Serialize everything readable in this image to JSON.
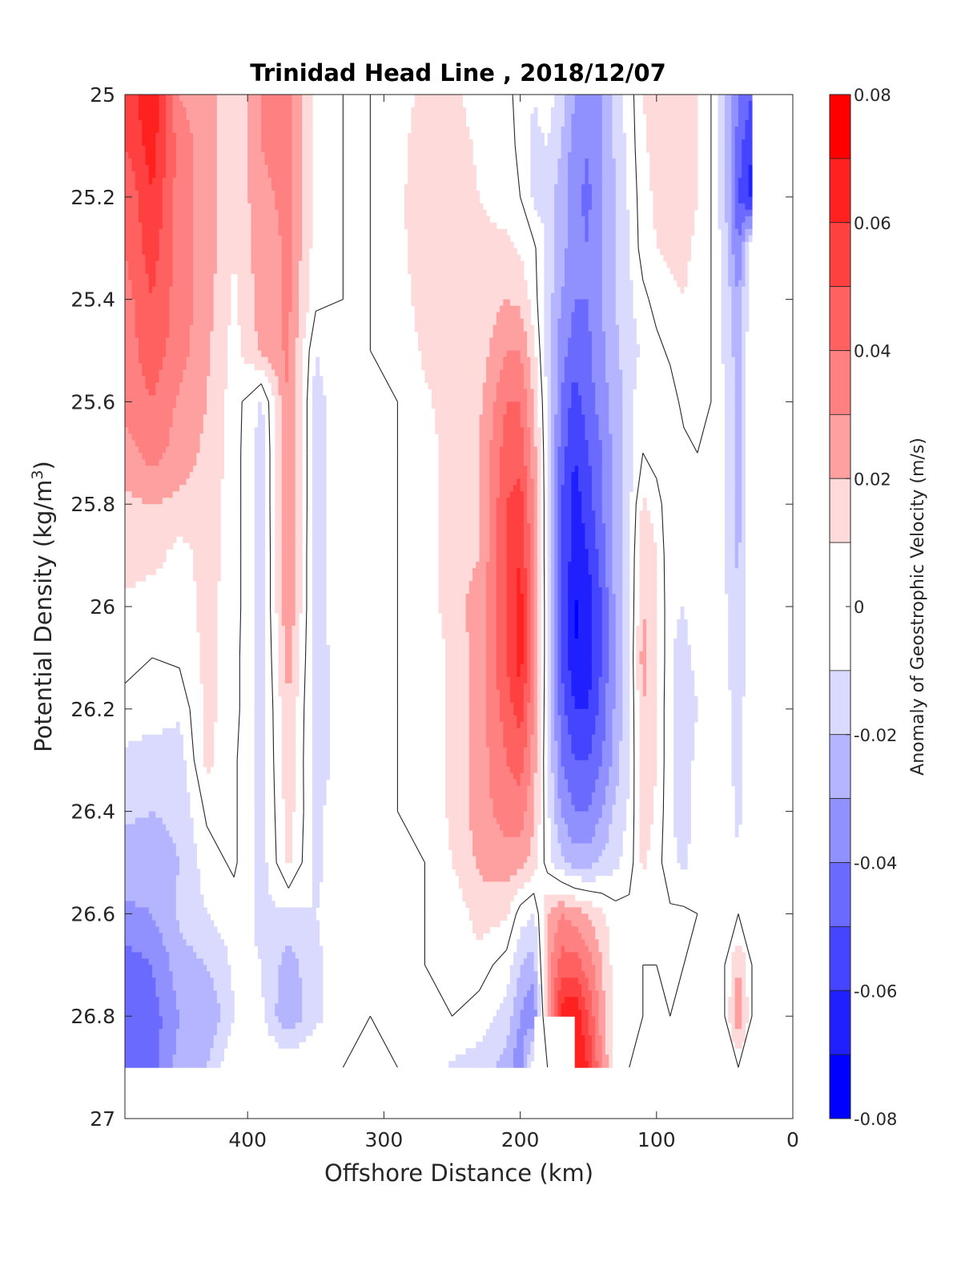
{
  "chart_data": {
    "type": "heatmap",
    "subtype": "filled-contour section",
    "title": "Trinidad Head Line , 2018/12/07",
    "xlabel": "Offshore Distance (km)",
    "ylabel": "Potential Density (kg/m",
    "ylabel_superscript": "3",
    "ylabel_close": ")",
    "xlim": [
      490,
      0
    ],
    "x_reversed": true,
    "ylim": [
      25,
      27
    ],
    "y_reversed": true,
    "x_ticks": [
      400,
      300,
      200,
      100,
      0
    ],
    "y_ticks": [
      25,
      25.2,
      25.4,
      25.6,
      25.8,
      26,
      26.2,
      26.4,
      26.6,
      26.8,
      27
    ],
    "colorbar": {
      "label": "Anomaly of Geostrophic Velocity (m/s)",
      "range": [
        -0.08,
        0.08
      ],
      "ticks": [
        0.08,
        0.06,
        0.04,
        0.02,
        0,
        -0.02,
        -0.04,
        -0.06,
        -0.08
      ],
      "tick_labels": [
        "0.08",
        "0.06",
        "0.04",
        "0.02",
        "0",
        "-0.02",
        "-0.04",
        "-0.06",
        "-0.08"
      ],
      "levels": [
        {
          "range": [
            0.07,
            0.08
          ],
          "color": "#ff0000"
        },
        {
          "range": [
            0.06,
            0.07
          ],
          "color": "#ff2020"
        },
        {
          "range": [
            0.05,
            0.06
          ],
          "color": "#ff4040"
        },
        {
          "range": [
            0.04,
            0.05
          ],
          "color": "#ff6060"
        },
        {
          "range": [
            0.03,
            0.04
          ],
          "color": "#ff8080"
        },
        {
          "range": [
            0.02,
            0.03
          ],
          "color": "#ffa0a0"
        },
        {
          "range": [
            0.01,
            0.02
          ],
          "color": "#ffdada"
        },
        {
          "range": [
            -0.01,
            0.01
          ],
          "color": "#ffffff"
        },
        {
          "range": [
            -0.02,
            -0.01
          ],
          "color": "#dadaff"
        },
        {
          "range": [
            -0.03,
            -0.02
          ],
          "color": "#b5b5ff"
        },
        {
          "range": [
            -0.04,
            -0.03
          ],
          "color": "#9090ff"
        },
        {
          "range": [
            -0.05,
            -0.04
          ],
          "color": "#6a6aff"
        },
        {
          "range": [
            -0.06,
            -0.05
          ],
          "color": "#4545ff"
        },
        {
          "range": [
            -0.07,
            -0.06
          ],
          "color": "#2020ff"
        },
        {
          "range": [
            -0.08,
            -0.07
          ],
          "color": "#0000ff"
        }
      ]
    },
    "field": {
      "x": [
        490,
        470,
        450,
        430,
        410,
        390,
        370,
        350,
        330,
        310,
        290,
        270,
        250,
        230,
        210,
        200,
        190,
        180,
        170,
        160,
        150,
        140,
        130,
        120,
        110,
        100,
        90,
        80,
        70,
        60,
        50,
        40,
        30
      ],
      "y": [
        25,
        25.1,
        25.2,
        25.3,
        25.4,
        25.5,
        25.6,
        25.7,
        25.8,
        25.9,
        26,
        26.1,
        26.2,
        26.3,
        26.4,
        26.5,
        26.6,
        26.7,
        26.8,
        26.9
      ],
      "values": [
        [
          0.05,
          0.07,
          0.03,
          0.025,
          0.01,
          0.03,
          0.035,
          0.005,
          0,
          0,
          0.002,
          0.015,
          0.013,
          0.005,
          0.004,
          -0.005,
          -0.01,
          -0.005,
          -0.015,
          -0.03,
          -0.04,
          -0.03,
          -0.015,
          -0.005,
          0.01,
          0.015,
          0.02,
          0.015,
          0.01,
          0,
          -0.02,
          -0.04,
          -0.05
        ],
        [
          0.05,
          0.065,
          0.035,
          0.025,
          0.01,
          0.03,
          0.035,
          0.005,
          0,
          0,
          0.005,
          0.018,
          0.015,
          0.008,
          0.005,
          -0.003,
          -0.012,
          -0.01,
          -0.02,
          -0.035,
          -0.04,
          -0.03,
          -0.018,
          -0.006,
          0.008,
          0.014,
          0.018,
          0.016,
          0.01,
          0,
          -0.02,
          -0.045,
          -0.06
        ],
        [
          0.04,
          0.06,
          0.035,
          0.025,
          0.01,
          0.028,
          0.032,
          0.006,
          0,
          0,
          0.006,
          0.02,
          0.015,
          0.01,
          0.006,
          0,
          -0.012,
          -0.015,
          -0.025,
          -0.038,
          -0.042,
          -0.03,
          -0.02,
          -0.008,
          0.006,
          0.012,
          0.016,
          0.015,
          0.01,
          0,
          -0.018,
          -0.05,
          -0.065
        ],
        [
          0.04,
          0.055,
          0.035,
          0.025,
          0.01,
          0.025,
          0.032,
          0.005,
          0,
          0,
          0.006,
          0.018,
          0.018,
          0.012,
          0.012,
          0.008,
          0.002,
          -0.012,
          -0.025,
          -0.038,
          -0.04,
          -0.03,
          -0.02,
          -0.01,
          0.005,
          0.01,
          0.012,
          0.012,
          0.008,
          0,
          -0.015,
          -0.04,
          0
        ],
        [
          0.035,
          0.05,
          0.035,
          0.025,
          0.008,
          0.025,
          0.032,
          0.003,
          0,
          0,
          0.004,
          0.015,
          0.015,
          0.014,
          0.02,
          0.018,
          0.005,
          -0.015,
          -0.03,
          -0.04,
          -0.04,
          -0.03,
          -0.02,
          -0.012,
          -0.003,
          0.004,
          0.008,
          0.01,
          0.006,
          0,
          -0.012,
          -0.03,
          0
        ],
        [
          0.035,
          0.045,
          0.035,
          0.022,
          0.006,
          0.022,
          0.032,
          -0.01,
          0,
          0,
          0.002,
          0.012,
          0.015,
          0.014,
          0.03,
          0.03,
          0.012,
          -0.015,
          -0.035,
          -0.045,
          -0.042,
          -0.032,
          -0.022,
          -0.015,
          -0.008,
          -0.003,
          0.002,
          0.006,
          0.004,
          0,
          -0.012,
          -0.025,
          0
        ],
        [
          0.035,
          0.04,
          0.028,
          0.02,
          0.005,
          -0.012,
          0.032,
          -0.015,
          0,
          0,
          0,
          0.008,
          0.015,
          0.018,
          0.04,
          0.04,
          0.02,
          -0.012,
          -0.04,
          -0.055,
          -0.045,
          -0.035,
          -0.025,
          -0.015,
          0,
          -0.005,
          -0.005,
          0.003,
          0.002,
          0,
          -0.01,
          -0.025,
          0
        ],
        [
          0.025,
          0.035,
          0.025,
          0.018,
          0.005,
          -0.015,
          0.032,
          -0.015,
          0,
          0,
          0,
          0.005,
          0.015,
          0.02,
          0.045,
          0.045,
          0.025,
          -0.01,
          -0.045,
          -0.06,
          -0.05,
          -0.04,
          -0.025,
          -0.015,
          0,
          -0.005,
          -0.008,
          -0.003,
          0,
          0,
          -0.01,
          -0.025,
          0
        ],
        [
          0.018,
          0.02,
          0.018,
          0.015,
          0.005,
          -0.015,
          0.032,
          -0.015,
          0,
          0,
          0,
          0.004,
          0.015,
          0.02,
          0.05,
          0.055,
          0.03,
          -0.01,
          -0.05,
          -0.065,
          -0.055,
          -0.04,
          -0.025,
          -0.012,
          0.012,
          0.005,
          -0.008,
          -0.005,
          0,
          0,
          -0.01,
          -0.025,
          0
        ],
        [
          0.015,
          0.015,
          0.005,
          0.015,
          0.005,
          -0.015,
          0.03,
          -0.015,
          0,
          0,
          0,
          0.004,
          0.015,
          0.02,
          0.05,
          0.06,
          0.03,
          -0.01,
          -0.05,
          -0.065,
          -0.06,
          -0.045,
          -0.025,
          -0.012,
          0.02,
          0.01,
          -0.008,
          -0.008,
          0,
          0,
          -0.01,
          -0.022,
          0
        ],
        [
          0.008,
          0.002,
          0.005,
          0.013,
          0.005,
          -0.015,
          0.03,
          -0.015,
          0,
          0,
          0,
          0.004,
          0.015,
          0.025,
          0.05,
          0.065,
          0.035,
          -0.01,
          -0.05,
          -0.072,
          -0.065,
          -0.05,
          -0.028,
          -0.01,
          0.02,
          0.012,
          -0.008,
          -0.01,
          0,
          0,
          -0.008,
          -0.02,
          0
        ],
        [
          0.005,
          0,
          0.002,
          0.013,
          0.004,
          -0.015,
          0.025,
          -0.015,
          -0.005,
          0,
          0,
          0.002,
          0.012,
          0.025,
          0.05,
          0.065,
          0.035,
          -0.01,
          -0.05,
          -0.07,
          -0.065,
          -0.05,
          -0.028,
          -0.01,
          0.025,
          0.012,
          -0.008,
          -0.015,
          -0.005,
          0,
          -0.008,
          -0.02,
          0
        ],
        [
          -0.005,
          -0.005,
          -0.008,
          0.013,
          0.004,
          -0.015,
          0.02,
          -0.015,
          -0.005,
          0,
          0,
          0.002,
          0.012,
          0.025,
          0.045,
          0.055,
          0.03,
          -0.01,
          -0.045,
          -0.06,
          -0.06,
          -0.045,
          -0.028,
          -0.01,
          0.02,
          0.01,
          -0.008,
          -0.02,
          -0.01,
          0,
          -0.005,
          -0.015,
          0
        ],
        [
          -0.012,
          -0.015,
          -0.015,
          0.013,
          0.002,
          -0.015,
          0.018,
          -0.015,
          -0.005,
          0,
          0,
          0.002,
          0.012,
          0.025,
          0.04,
          0.045,
          0.025,
          -0.01,
          -0.04,
          -0.05,
          -0.05,
          -0.04,
          -0.025,
          -0.01,
          0.018,
          0.01,
          -0.008,
          -0.018,
          -0.005,
          0,
          -0.005,
          -0.015,
          0
        ],
        [
          -0.018,
          -0.02,
          -0.018,
          0.002,
          0.002,
          -0.015,
          0.015,
          -0.012,
          -0.005,
          0,
          0,
          0.002,
          0.012,
          0.025,
          0.035,
          0.035,
          0.022,
          -0.008,
          -0.03,
          -0.04,
          -0.04,
          -0.03,
          -0.018,
          -0.008,
          0.015,
          0.008,
          -0.008,
          -0.015,
          -0.005,
          0,
          -0.003,
          -0.012,
          0
        ],
        [
          -0.025,
          -0.025,
          -0.02,
          -0.005,
          0.002,
          -0.015,
          0.012,
          -0.012,
          -0.005,
          0,
          0,
          0,
          0.01,
          0.022,
          0.025,
          0.025,
          0.015,
          -0.005,
          -0.018,
          -0.025,
          -0.025,
          -0.018,
          -0.012,
          -0.005,
          0.012,
          0.005,
          -0.008,
          -0.012,
          -0.005,
          0,
          -0.002,
          -0.01,
          0
        ],
        [
          -0.032,
          -0.03,
          -0.018,
          -0.01,
          -0.005,
          -0.012,
          -0.012,
          -0.01,
          -0.005,
          0,
          0,
          0,
          0.002,
          0.015,
          0.012,
          -0.005,
          -0.01,
          0.02,
          0.03,
          0.025,
          0.02,
          0.012,
          0.004,
          0.003,
          0.004,
          0.003,
          0.002,
          0.002,
          0,
          0,
          0,
          0,
          0
        ],
        [
          -0.045,
          -0.04,
          -0.025,
          -0.02,
          -0.008,
          -0.01,
          -0.025,
          -0.012,
          -0.005,
          0,
          0,
          0,
          0.002,
          0.005,
          -0.005,
          -0.02,
          -0.025,
          0.025,
          0.045,
          0.045,
          0.035,
          0.02,
          0.004,
          0.003,
          0,
          0,
          0.002,
          0,
          0,
          0,
          0,
          0.02,
          0
        ],
        [
          -0.05,
          -0.045,
          -0.03,
          -0.03,
          -0.01,
          -0.008,
          -0.03,
          -0.012,
          -0.005,
          0,
          0,
          0,
          0,
          -0.005,
          -0.015,
          -0.03,
          -0.04,
          0.02,
          0.065,
          0.07,
          0.05,
          0.025,
          0.005,
          0.002,
          0,
          0,
          0,
          0,
          0,
          0,
          0,
          0.03,
          0
        ],
        [
          -0.05,
          -0.045,
          -0.025,
          -0.02,
          0,
          0,
          0,
          0,
          0,
          0.008,
          0,
          0,
          -0.012,
          -0.015,
          -0.025,
          -0.04,
          0,
          0,
          0.05,
          0.07,
          0.06,
          0.03,
          0.005,
          0,
          -0.012,
          0,
          0,
          0,
          0,
          0,
          0,
          0,
          0
        ]
      ],
      "nan_below": 26.9,
      "nan_rect": {
        "x": [
          160,
          190
        ],
        "y": [
          26.8,
          26.9
        ]
      },
      "nan_outside": {
        "x_max": 490,
        "x_min": 30
      }
    }
  }
}
